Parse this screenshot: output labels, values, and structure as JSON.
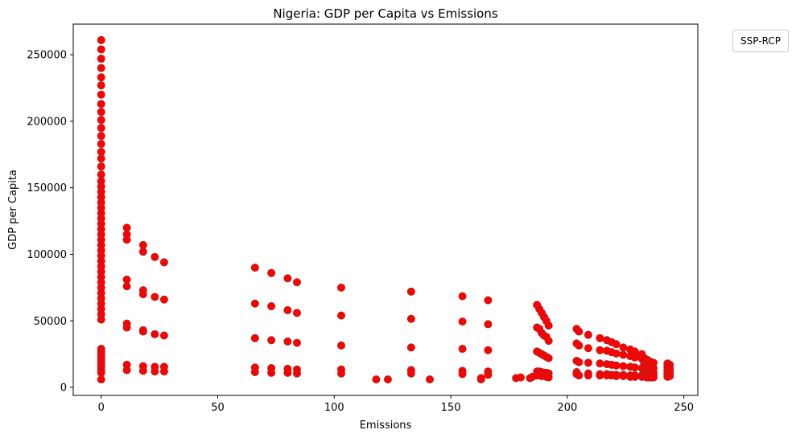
{
  "chart_data": {
    "type": "scatter",
    "title": "Nigeria: GDP per Capita vs Emissions",
    "xlabel": "Emissions",
    "ylabel": "GDP per Capita",
    "xlim": [
      -12,
      256
    ],
    "ylim": [
      -6000,
      273000
    ],
    "xticks": [
      0,
      50,
      100,
      150,
      200,
      250
    ],
    "yticks": [
      0,
      50000,
      100000,
      150000,
      200000,
      250000
    ],
    "grid": false,
    "legend": {
      "title": "SSP-RCP",
      "placement": "outside-top-right"
    },
    "marker_color": "#ff0000",
    "marker_edge_color": "#b22222",
    "points": [
      [
        0,
        261000
      ],
      [
        0,
        254000
      ],
      [
        0,
        247000
      ],
      [
        0,
        240000
      ],
      [
        0,
        233000
      ],
      [
        0,
        227000
      ],
      [
        0,
        220000
      ],
      [
        0,
        213000
      ],
      [
        0,
        207000
      ],
      [
        0,
        201000
      ],
      [
        0,
        195000
      ],
      [
        0,
        189000
      ],
      [
        0,
        183000
      ],
      [
        0,
        177000
      ],
      [
        0,
        172000
      ],
      [
        0,
        166000
      ],
      [
        0,
        160000
      ],
      [
        0,
        155000
      ],
      [
        0,
        151000
      ],
      [
        0,
        147000
      ],
      [
        0,
        143000
      ],
      [
        0,
        139000
      ],
      [
        0,
        135000
      ],
      [
        0,
        131000
      ],
      [
        0,
        127000
      ],
      [
        0,
        123000
      ],
      [
        0,
        119000
      ],
      [
        0,
        115000
      ],
      [
        0,
        111000
      ],
      [
        0,
        107000
      ],
      [
        0,
        103000
      ],
      [
        0,
        99000
      ],
      [
        0,
        95000
      ],
      [
        0,
        91000
      ],
      [
        0,
        87000
      ],
      [
        0,
        83000
      ],
      [
        0,
        79000
      ],
      [
        0,
        75000
      ],
      [
        0,
        71000
      ],
      [
        0,
        67000
      ],
      [
        0,
        63000
      ],
      [
        0,
        59000
      ],
      [
        0,
        55000
      ],
      [
        0,
        51000
      ],
      [
        0,
        29000
      ],
      [
        0,
        27000
      ],
      [
        0,
        25000
      ],
      [
        0,
        23000
      ],
      [
        0,
        21000
      ],
      [
        0,
        19000
      ],
      [
        0,
        17000
      ],
      [
        0,
        15000
      ],
      [
        0,
        13000
      ],
      [
        0,
        11000
      ],
      [
        0,
        6000
      ],
      [
        11,
        120000
      ],
      [
        11,
        115000
      ],
      [
        11,
        111000
      ],
      [
        11,
        81000
      ],
      [
        11,
        76000
      ],
      [
        11,
        48000
      ],
      [
        11,
        45000
      ],
      [
        11,
        17000
      ],
      [
        11,
        13000
      ],
      [
        18,
        107000
      ],
      [
        18,
        102000
      ],
      [
        18,
        73000
      ],
      [
        18,
        70000
      ],
      [
        18,
        43000
      ],
      [
        18,
        42000
      ],
      [
        18,
        16000
      ],
      [
        18,
        12500
      ],
      [
        23,
        98000
      ],
      [
        23,
        68000
      ],
      [
        23,
        40000
      ],
      [
        23,
        15500
      ],
      [
        23,
        12000
      ],
      [
        27,
        94000
      ],
      [
        27,
        66000
      ],
      [
        27,
        39000
      ],
      [
        27,
        15500
      ],
      [
        27,
        12000
      ],
      [
        66,
        90000
      ],
      [
        66,
        63000
      ],
      [
        66,
        37000
      ],
      [
        66,
        15000
      ],
      [
        66,
        11500
      ],
      [
        73,
        86000
      ],
      [
        73,
        61000
      ],
      [
        73,
        35500
      ],
      [
        73,
        14500
      ],
      [
        73,
        11000
      ],
      [
        80,
        82000
      ],
      [
        80,
        58000
      ],
      [
        80,
        34500
      ],
      [
        80,
        14000
      ],
      [
        80,
        11000
      ],
      [
        84,
        79000
      ],
      [
        84,
        56000
      ],
      [
        84,
        33500
      ],
      [
        84,
        13500
      ],
      [
        84,
        10500
      ],
      [
        103,
        75000
      ],
      [
        103,
        54000
      ],
      [
        103,
        31500
      ],
      [
        103,
        13500
      ],
      [
        103,
        10500
      ],
      [
        118,
        6000
      ],
      [
        123,
        6000
      ],
      [
        141,
        6000
      ],
      [
        133,
        72000
      ],
      [
        133,
        51500
      ],
      [
        133,
        30000
      ],
      [
        133,
        13000
      ],
      [
        133,
        10500
      ],
      [
        155,
        68500
      ],
      [
        155,
        49500
      ],
      [
        155,
        29000
      ],
      [
        155,
        12500
      ],
      [
        155,
        10000
      ],
      [
        163,
        6000
      ],
      [
        163,
        7000
      ],
      [
        166,
        65500
      ],
      [
        166,
        47500
      ],
      [
        166,
        28000
      ],
      [
        166,
        12000
      ],
      [
        166,
        9500
      ],
      [
        178,
        7000
      ],
      [
        180,
        7500
      ],
      [
        184,
        7000
      ],
      [
        185,
        8000
      ],
      [
        187,
        62000
      ],
      [
        188,
        59000
      ],
      [
        189,
        56000
      ],
      [
        190,
        53000
      ],
      [
        191,
        50000
      ],
      [
        192,
        46500
      ],
      [
        187,
        45000
      ],
      [
        188,
        44000
      ],
      [
        189,
        41000
      ],
      [
        190,
        39000
      ],
      [
        191,
        38000
      ],
      [
        192,
        35000
      ],
      [
        187,
        27000
      ],
      [
        188,
        26000
      ],
      [
        189,
        25000
      ],
      [
        190,
        24000
      ],
      [
        191,
        23000
      ],
      [
        192,
        22000
      ],
      [
        187,
        12000
      ],
      [
        188,
        12000
      ],
      [
        189,
        11500
      ],
      [
        190,
        11000
      ],
      [
        191,
        11000
      ],
      [
        192,
        10500
      ],
      [
        187,
        9000
      ],
      [
        189,
        8500
      ],
      [
        191,
        8000
      ],
      [
        192,
        7500
      ],
      [
        204,
        44000
      ],
      [
        205,
        42000
      ],
      [
        204,
        33000
      ],
      [
        205,
        31500
      ],
      [
        204,
        20000
      ],
      [
        205,
        19000
      ],
      [
        204,
        11500
      ],
      [
        204,
        10000
      ],
      [
        205,
        9000
      ],
      [
        209,
        39500
      ],
      [
        209,
        29500
      ],
      [
        209,
        18500
      ],
      [
        209,
        10500
      ],
      [
        209,
        9000
      ],
      [
        214,
        37000
      ],
      [
        214,
        28000
      ],
      [
        214,
        18000
      ],
      [
        214,
        10000
      ],
      [
        214,
        9000
      ],
      [
        217,
        35500
      ],
      [
        217,
        27500
      ],
      [
        217,
        17500
      ],
      [
        217,
        10000
      ],
      [
        217,
        9000
      ],
      [
        219,
        34000
      ],
      [
        219,
        26500
      ],
      [
        219,
        17000
      ],
      [
        219,
        9500
      ],
      [
        219,
        9000
      ],
      [
        221,
        32500
      ],
      [
        221,
        25500
      ],
      [
        221,
        16500
      ],
      [
        221,
        9500
      ],
      [
        221,
        8500
      ],
      [
        224,
        30000
      ],
      [
        224,
        24500
      ],
      [
        224,
        16000
      ],
      [
        224,
        9500
      ],
      [
        224,
        8500
      ],
      [
        227,
        28500
      ],
      [
        227,
        23500
      ],
      [
        227,
        15500
      ],
      [
        227,
        9000
      ],
      [
        227,
        8000
      ],
      [
        229,
        27000
      ],
      [
        229,
        22500
      ],
      [
        229,
        15000
      ],
      [
        229,
        9000
      ],
      [
        229,
        8000
      ],
      [
        232,
        25000
      ],
      [
        232,
        21500
      ],
      [
        232,
        14500
      ],
      [
        232,
        9000
      ],
      [
        232,
        8000
      ],
      [
        233,
        22000
      ],
      [
        233,
        18000
      ],
      [
        233,
        14000
      ],
      [
        233,
        11000
      ],
      [
        233,
        8500
      ],
      [
        234,
        21000
      ],
      [
        234,
        17000
      ],
      [
        234,
        13000
      ],
      [
        234,
        10000
      ],
      [
        234,
        7500
      ],
      [
        235,
        20000
      ],
      [
        235,
        16000
      ],
      [
        235,
        12000
      ],
      [
        235,
        9500
      ],
      [
        235,
        7500
      ],
      [
        236,
        19000
      ],
      [
        236,
        15000
      ],
      [
        236,
        11500
      ],
      [
        236,
        9000
      ],
      [
        236,
        7500
      ],
      [
        237,
        18500
      ],
      [
        237,
        14500
      ],
      [
        237,
        11000
      ],
      [
        237,
        9000
      ],
      [
        237,
        7500
      ],
      [
        243,
        18000
      ],
      [
        243,
        16500
      ],
      [
        243,
        15000
      ],
      [
        243,
        13000
      ],
      [
        243,
        11000
      ],
      [
        243,
        9500
      ],
      [
        243,
        8000
      ],
      [
        244,
        17000
      ],
      [
        244,
        14000
      ],
      [
        244,
        12000
      ],
      [
        244,
        10000
      ],
      [
        244,
        8500
      ]
    ]
  }
}
